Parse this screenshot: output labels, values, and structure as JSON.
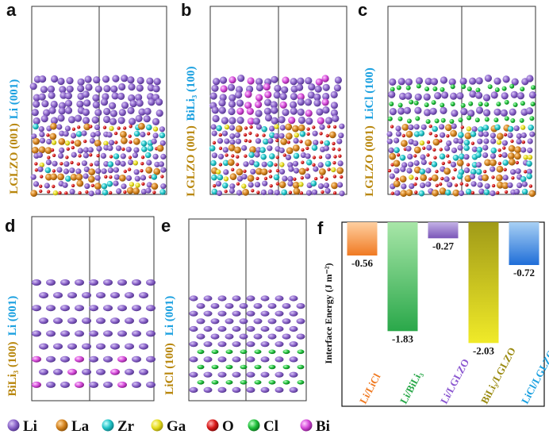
{
  "colors": {
    "Li": "#8a63c9",
    "La": "#d4831f",
    "Zr": "#22c4c8",
    "Ga": "#e6dd1e",
    "O": "#d91a1a",
    "Cl": "#1fbf3a",
    "Bi": "#d54bd9",
    "label_cyan": "#1aa0e0",
    "label_gold": "#b8860b"
  },
  "panels": [
    {
      "letter": "a",
      "top_label": "Li (001)",
      "bottom_label": "LGLZO (001)"
    },
    {
      "letter": "b",
      "top_label": "BiLi₃ (100)",
      "bottom_label": "LGLZO (001)"
    },
    {
      "letter": "c",
      "top_label": "LiCl (100)",
      "bottom_label": "LGLZO (001)"
    },
    {
      "letter": "d",
      "top_label": "Li (001)",
      "bottom_label": "BiLi₃ (100)"
    },
    {
      "letter": "e",
      "top_label": "Li (001)",
      "bottom_label": "LiCl (100)"
    }
  ],
  "legend": [
    {
      "element": "Li",
      "color": "#8a63c9"
    },
    {
      "element": "La",
      "color": "#d4831f"
    },
    {
      "element": "Zr",
      "color": "#22c4c8"
    },
    {
      "element": "Ga",
      "color": "#e6dd1e"
    },
    {
      "element": "O",
      "color": "#d91a1a"
    },
    {
      "element": "Cl",
      "color": "#1fbf3a"
    },
    {
      "element": "Bi",
      "color": "#d54bd9"
    }
  ],
  "chart_data": {
    "type": "bar",
    "panel_letter": "f",
    "ylabel": "Interface Energy (J m⁻²)",
    "categories": [
      "Li/LiCl",
      "Li/BiLi₃",
      "Li/LGLZO",
      "BiLi₃/LGLZO",
      "LiCl/LGLZO"
    ],
    "values": [
      -0.56,
      -1.83,
      -0.27,
      -2.03,
      -0.72
    ],
    "value_labels": [
      "-0.56",
      "-1.83",
      "-0.27",
      "-2.03",
      "-0.72"
    ],
    "bar_colors": [
      [
        "#ffcfa0",
        "#f07a22"
      ],
      [
        "#a8e6a8",
        "#2aa84a"
      ],
      [
        "#c4b2e6",
        "#7a56b8"
      ],
      [
        "#a09a18",
        "#f0ea28"
      ],
      [
        "#a8d0f4",
        "#1f6ed8"
      ]
    ],
    "label_colors": [
      "#f07a22",
      "#2aa84a",
      "#8a56d0",
      "#9a8a10",
      "#1aa0e0"
    ],
    "ylim": [
      -2.2,
      0
    ]
  }
}
